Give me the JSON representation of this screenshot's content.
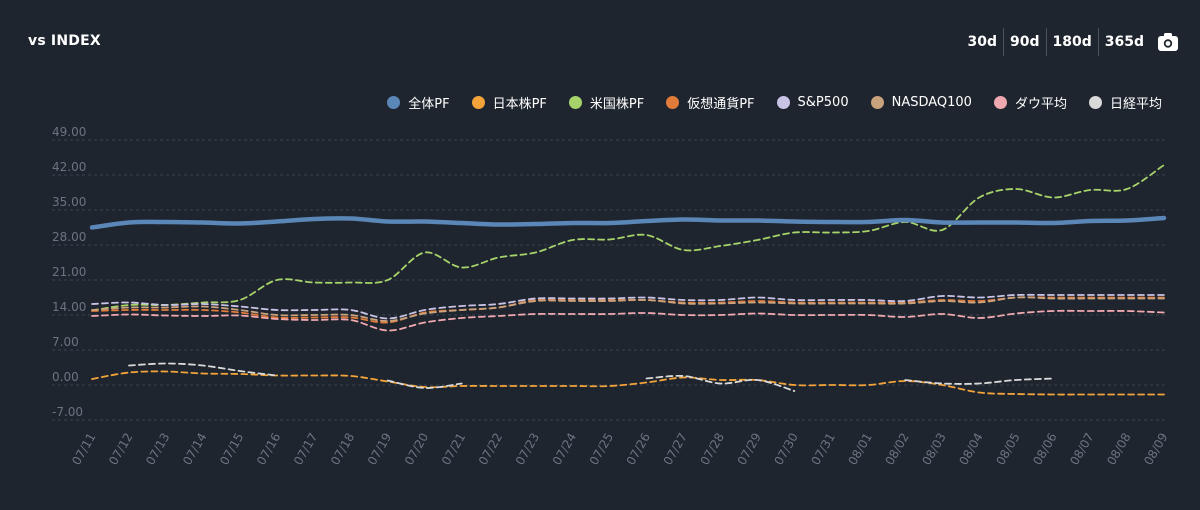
{
  "header": {
    "title": "vs INDEX",
    "ranges": [
      "30d",
      "90d",
      "180d",
      "365d"
    ],
    "camera_icon": "camera-icon"
  },
  "colors": {
    "background": "#1f252e",
    "grid": "#3a4350",
    "tick": "#6b7480"
  },
  "chart_data": {
    "type": "line",
    "title": "",
    "xlabel": "",
    "ylabel": "",
    "ylim": [
      -7,
      49
    ],
    "yticks": [
      "-7.00",
      "0.00",
      "7.00",
      "14.00",
      "21.00",
      "28.00",
      "35.00",
      "42.00",
      "49.00"
    ],
    "x": [
      "07/11",
      "07/12",
      "07/13",
      "07/14",
      "07/15",
      "07/16",
      "07/17",
      "07/18",
      "07/19",
      "07/20",
      "07/21",
      "07/22",
      "07/23",
      "07/24",
      "07/25",
      "07/26",
      "07/27",
      "07/28",
      "07/29",
      "07/30",
      "07/31",
      "08/01",
      "08/02",
      "08/03",
      "08/04",
      "08/05",
      "08/06",
      "08/07",
      "08/08",
      "08/09"
    ],
    "grid": true,
    "legend_position": "top-right",
    "series": [
      {
        "name": "全体PF",
        "color": "#5b86b8",
        "style": "solid",
        "values": [
          31.5,
          32.5,
          32.6,
          32.5,
          32.3,
          32.7,
          33.2,
          33.3,
          32.7,
          32.7,
          32.4,
          32.1,
          32.2,
          32.4,
          32.4,
          32.8,
          33.1,
          32.9,
          32.9,
          32.7,
          32.6,
          32.6,
          33.0,
          32.5,
          32.5,
          32.5,
          32.4,
          32.8,
          32.9,
          33.4
        ]
      },
      {
        "name": "日本株PF",
        "color": "#f2a33a",
        "style": "dashed",
        "values": [
          1.2,
          2.5,
          2.7,
          2.3,
          2.2,
          1.9,
          1.9,
          1.8,
          0.7,
          -0.4,
          -0.2,
          -0.2,
          -0.2,
          -0.2,
          -0.2,
          0.5,
          1.5,
          1.0,
          1.0,
          0.0,
          0.0,
          0.0,
          0.8,
          0.0,
          -1.5,
          -1.8,
          -1.9,
          -1.9,
          -1.9,
          -1.9
        ]
      },
      {
        "name": "米国株PF",
        "color": "#a6d36a",
        "style": "dashed",
        "values": [
          14.9,
          16.0,
          16.0,
          16.5,
          17.0,
          21.0,
          20.5,
          20.5,
          21.0,
          26.5,
          23.5,
          25.5,
          26.5,
          29.0,
          29.1,
          30.0,
          27.0,
          27.8,
          29.0,
          30.5,
          30.5,
          30.8,
          32.6,
          31.0,
          37.5,
          39.2,
          37.5,
          39.0,
          39.2,
          44.0
        ]
      },
      {
        "name": "仮想通貨PF",
        "color": "#e07b3a",
        "style": "dashed",
        "values": [
          14.8,
          15.0,
          15.0,
          15.0,
          14.5,
          13.5,
          13.5,
          13.5,
          12.5,
          14.5,
          15.0,
          15.5,
          17.0,
          17.0,
          17.0,
          17.0,
          16.5,
          16.5,
          16.8,
          16.5,
          16.5,
          16.5,
          16.5,
          17.0,
          16.8,
          17.5,
          17.5,
          17.5,
          17.5,
          17.5
        ]
      },
      {
        "name": "S&P500",
        "color": "#c9c3e6",
        "style": "dashed",
        "values": [
          16.2,
          16.5,
          16.0,
          16.2,
          15.7,
          15.0,
          15.0,
          15.0,
          13.3,
          15.0,
          15.8,
          16.2,
          17.3,
          17.3,
          17.3,
          17.5,
          17.0,
          17.0,
          17.5,
          17.0,
          17.0,
          17.0,
          16.8,
          17.8,
          17.5,
          18.0,
          18.0,
          18.0,
          18.0,
          18.0
        ]
      },
      {
        "name": "NASDAQ100",
        "color": "#c9a27e",
        "style": "dashed",
        "values": [
          15.0,
          15.5,
          15.5,
          15.7,
          15.0,
          14.0,
          14.0,
          14.0,
          12.8,
          14.3,
          15.0,
          15.5,
          16.8,
          16.8,
          16.8,
          17.0,
          16.3,
          16.3,
          16.5,
          16.3,
          16.3,
          16.3,
          16.3,
          16.8,
          16.5,
          17.5,
          17.3,
          17.3,
          17.3,
          17.3
        ]
      },
      {
        "name": "ダウ平均",
        "color": "#f0a8b0",
        "style": "dashed",
        "values": [
          13.8,
          14.1,
          13.9,
          13.8,
          13.9,
          13.2,
          13.0,
          13.0,
          10.9,
          12.5,
          13.4,
          13.8,
          14.2,
          14.2,
          14.2,
          14.4,
          14.0,
          14.0,
          14.3,
          14.0,
          14.0,
          14.0,
          13.6,
          14.2,
          13.4,
          14.3,
          14.8,
          14.8,
          14.8,
          14.5
        ]
      },
      {
        "name": "日経平均",
        "color": "#d9d9d9",
        "style": "dashed",
        "values": [
          null,
          3.9,
          4.3,
          3.9,
          2.8,
          1.9,
          null,
          null,
          0.9,
          -0.6,
          0.3,
          null,
          null,
          null,
          null,
          1.3,
          1.8,
          0.3,
          1.0,
          -1.2,
          null,
          null,
          1.0,
          0.3,
          0.3,
          1.0,
          1.3,
          null,
          null,
          null
        ]
      }
    ]
  }
}
